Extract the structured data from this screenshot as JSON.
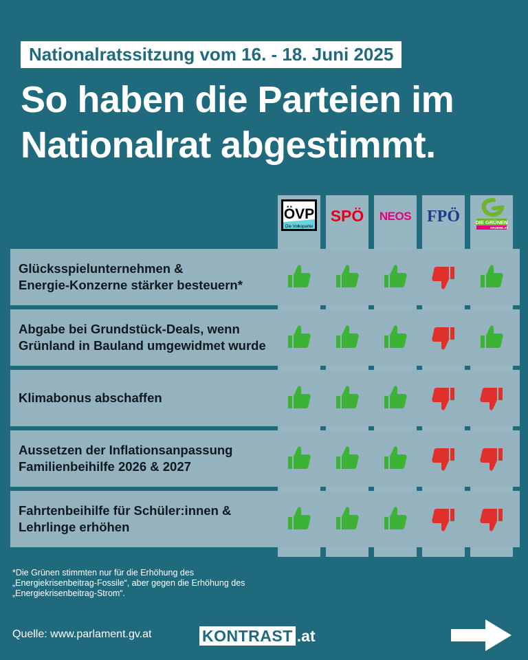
{
  "header": {
    "date_badge": "Nationalratssitzung vom 16. - 18. Juni 2025",
    "headline_line1": "So haben die Parteien im",
    "headline_line2": "Nationalrat abgestimmt."
  },
  "parties": [
    {
      "name": "ÖVP",
      "logo_text": "ÖVP",
      "logo_subtext": "Die Volkspartei",
      "color": "#000000"
    },
    {
      "name": "SPÖ",
      "logo_text": "SPÖ",
      "color": "#e3001b"
    },
    {
      "name": "NEOS",
      "logo_text": "NEOS",
      "color": "#e4007e"
    },
    {
      "name": "FPÖ",
      "logo_text": "FPÖ",
      "color": "#1c3c8c"
    },
    {
      "name": "Die Grünen",
      "logo_text": "DIE GRÜNEN",
      "logo_subtext": "GRUENE.AT",
      "color": "#6cb52d"
    }
  ],
  "votes": [
    {
      "topic_line1": "Glücksspielunternehmen &",
      "topic_line2": "Energie-Konzerne stärker besteuern*",
      "results": [
        "yes",
        "yes",
        "yes",
        "no",
        "yes"
      ]
    },
    {
      "topic_line1": "Abgabe bei Grundstück-Deals, wenn",
      "topic_line2": "Grünland in Bauland umgewidmet wurde",
      "results": [
        "yes",
        "yes",
        "yes",
        "no",
        "yes"
      ]
    },
    {
      "topic_line1": "Klimabonus abschaffen",
      "topic_line2": "",
      "results": [
        "yes",
        "yes",
        "yes",
        "no",
        "no"
      ]
    },
    {
      "topic_line1": "Aussetzen der Inflationsanpassung",
      "topic_line2": "Familienbeihilfe 2026 & 2027",
      "results": [
        "yes",
        "yes",
        "yes",
        "no",
        "no"
      ]
    },
    {
      "topic_line1": "Fahrtenbeihilfe für Schüler:innen &",
      "topic_line2": "Lehrlinge erhöhen",
      "results": [
        "yes",
        "yes",
        "yes",
        "no",
        "no"
      ]
    }
  ],
  "vote_icons": {
    "yes": "thumbs-up-icon",
    "no": "thumbs-down-icon"
  },
  "colors": {
    "background": "#1f6a7d",
    "yes": "#3cb335",
    "no": "#e0302b",
    "row": "#94b3bf"
  },
  "footnote": {
    "line1": "*Die Grünen stimmten nur für die Erhöhung des",
    "line2": "„Energiekrisenbeitrag-Fossile“, aber gegen die Erhöhung des",
    "line3": "„Energiekrisenbeitrag-Strom“."
  },
  "footer": {
    "source": "Quelle: www.parlament.gv.at",
    "brand_main": "KONTRAST",
    "brand_tld": ".at",
    "next_icon": "arrow-right-icon"
  }
}
